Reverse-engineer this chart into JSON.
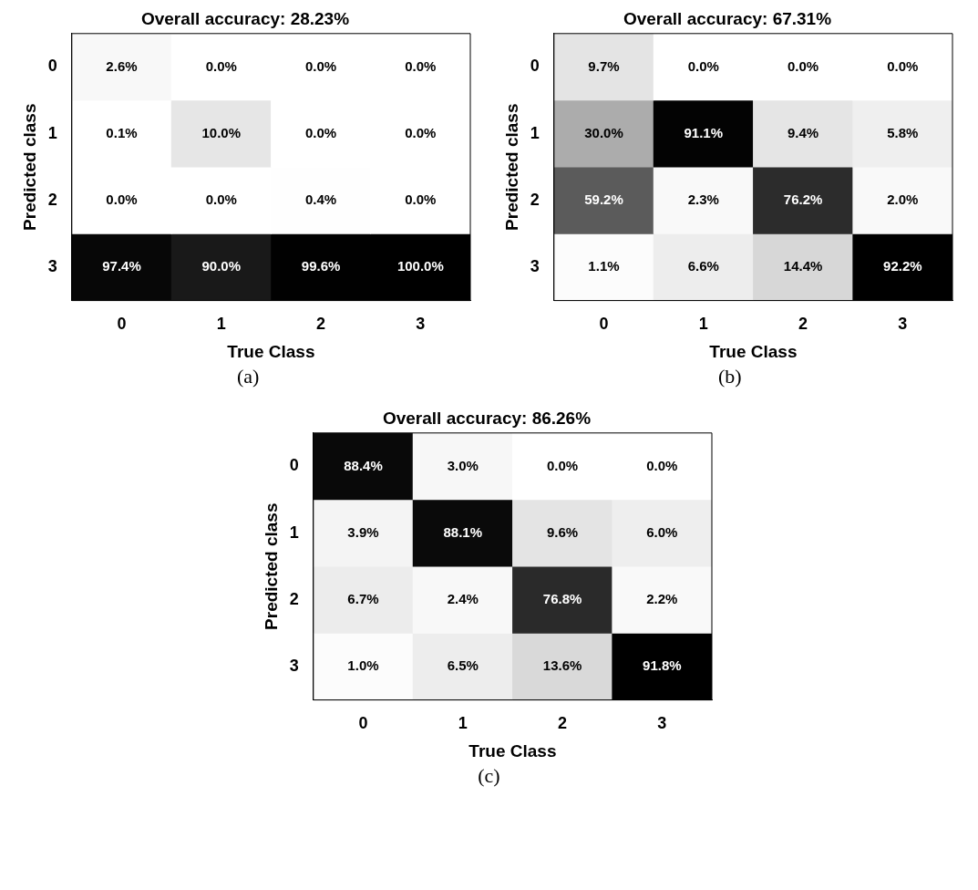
{
  "chart_data": [
    {
      "type": "heatmap",
      "title": "Overall accuracy: 28.23%",
      "xlabel": "True Class",
      "ylabel": "Predicted class",
      "categories": [
        "0",
        "1",
        "2",
        "3"
      ],
      "y_categories": [
        "0",
        "1",
        "2",
        "3"
      ],
      "cells": [
        [
          2.6,
          0.0,
          0.0,
          0.0
        ],
        [
          0.1,
          10.0,
          0.0,
          0.0
        ],
        [
          0.0,
          0.0,
          0.4,
          0.0
        ],
        [
          97.4,
          90.0,
          99.6,
          100.0
        ]
      ],
      "cell_labels": [
        [
          "2.6%",
          "0.0%",
          "0.0%",
          "0.0%"
        ],
        [
          "0.1%",
          "10.0%",
          "0.0%",
          "0.0%"
        ],
        [
          "0.0%",
          "0.0%",
          "0.4%",
          "0.0%"
        ],
        [
          "97.4%",
          "90.0%",
          "99.6%",
          "100.0%"
        ]
      ],
      "annotations": [
        "(a)"
      ]
    },
    {
      "type": "heatmap",
      "title": "Overall accuracy: 67.31%",
      "xlabel": "True Class",
      "ylabel": "Predicted class",
      "categories": [
        "0",
        "1",
        "2",
        "3"
      ],
      "y_categories": [
        "0",
        "1",
        "2",
        "3"
      ],
      "cells": [
        [
          9.7,
          0.0,
          0.0,
          0.0
        ],
        [
          30.0,
          91.1,
          9.4,
          5.8
        ],
        [
          59.2,
          2.3,
          76.2,
          2.0
        ],
        [
          1.1,
          6.6,
          14.4,
          92.2
        ]
      ],
      "cell_labels": [
        [
          "9.7%",
          "0.0%",
          "0.0%",
          "0.0%"
        ],
        [
          "30.0%",
          "91.1%",
          "9.4%",
          "5.8%"
        ],
        [
          "59.2%",
          "2.3%",
          "76.2%",
          "2.0%"
        ],
        [
          "1.1%",
          "6.6%",
          "14.4%",
          "92.2%"
        ]
      ],
      "annotations": [
        "(b)"
      ]
    },
    {
      "type": "heatmap",
      "title": "Overall accuracy: 86.26%",
      "xlabel": "True Class",
      "ylabel": "Predicted class",
      "categories": [
        "0",
        "1",
        "2",
        "3"
      ],
      "y_categories": [
        "0",
        "1",
        "2",
        "3"
      ],
      "cells": [
        [
          88.4,
          3.0,
          0.0,
          0.0
        ],
        [
          3.9,
          88.1,
          9.6,
          6.0
        ],
        [
          6.7,
          2.4,
          76.8,
          2.2
        ],
        [
          1.0,
          6.5,
          13.6,
          91.8
        ]
      ],
      "cell_labels": [
        [
          "88.4%",
          "3.0%",
          "0.0%",
          "0.0%"
        ],
        [
          "3.9%",
          "88.1%",
          "9.6%",
          "6.0%"
        ],
        [
          "6.7%",
          "2.4%",
          "76.8%",
          "2.2%"
        ],
        [
          "1.0%",
          "6.5%",
          "13.6%",
          "91.8%"
        ]
      ],
      "annotations": [
        "(c)"
      ]
    }
  ]
}
